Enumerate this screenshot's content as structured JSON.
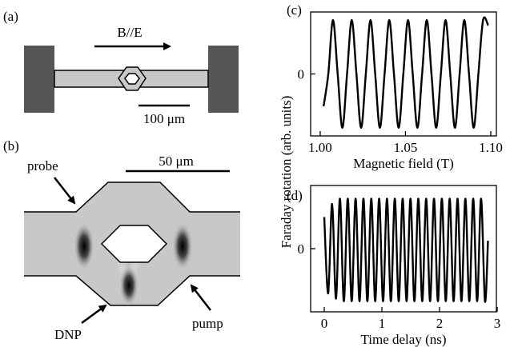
{
  "panel_a": {
    "label": "(a)",
    "arrow_label": "B//E",
    "scale_bar": "100 μm"
  },
  "panel_b": {
    "label": "(b)",
    "scale_bar": "50 μm",
    "probe": "probe",
    "dnp": "DNP",
    "pump": "pump"
  },
  "shared_ylabel": "Faraday rotation (arb. units)",
  "chart_data": [
    {
      "type": "line",
      "panel_label": "(c)",
      "xlabel": "Magnetic field (T)",
      "color": "#000000",
      "x": [
        1.002,
        1.00475,
        1.0075,
        1.01025,
        1.013,
        1.01575,
        1.0185,
        1.02125,
        1.024,
        1.02675,
        1.0295,
        1.03225,
        1.035,
        1.03775,
        1.0405,
        1.04325,
        1.046,
        1.04875,
        1.0515,
        1.05425,
        1.057,
        1.05975,
        1.0625,
        1.06525,
        1.068,
        1.07075,
        1.0735,
        1.07625,
        1.079,
        1.08175,
        1.0845,
        1.08725,
        1.09,
        1.09275,
        1.0955,
        1.0985
      ],
      "values": [
        -0.6,
        0,
        1,
        0,
        -1,
        0,
        1,
        0,
        -1,
        0,
        1,
        0,
        -1,
        0,
        1,
        0,
        -1,
        0,
        1,
        0,
        -1,
        0,
        1,
        0,
        -1,
        0,
        1,
        0,
        -1,
        0,
        1,
        0,
        -1,
        0,
        1,
        0.9
      ],
      "xlim": [
        0.9944,
        1.1033
      ],
      "ylim": [
        -1.15,
        1.15
      ],
      "xticks": [
        {
          "value": 1.0,
          "label": "1.00"
        },
        {
          "value": 1.05,
          "label": "1.05"
        },
        {
          "value": 1.1,
          "label": "1.10"
        }
      ],
      "yticks": [
        0
      ]
    },
    {
      "type": "line",
      "panel_label": "(d)",
      "xlabel": "Time delay (ns)",
      "color": "#000000",
      "x": [
        0,
        0.068,
        0.136,
        0.204,
        0.272,
        0.34,
        0.408,
        0.476,
        0.544,
        0.612,
        0.68,
        0.748,
        0.816,
        0.884,
        0.952,
        1.02,
        1.088,
        1.156,
        1.224,
        1.292,
        1.36,
        1.428,
        1.496,
        1.564,
        1.632,
        1.7,
        1.768,
        1.836,
        1.904,
        1.972,
        2.04,
        2.108,
        2.176,
        2.244,
        2.312,
        2.38,
        2.448,
        2.516,
        2.584,
        2.652,
        2.72,
        2.788,
        2.84
      ],
      "values": [
        0.6,
        -0.85,
        0.85,
        -0.95,
        0.95,
        -1,
        0.95,
        -1,
        0.95,
        -1,
        0.95,
        -1,
        0.95,
        -1,
        0.95,
        -1,
        0.95,
        -1,
        0.95,
        -1,
        0.95,
        -1,
        0.95,
        -1,
        0.95,
        -1,
        0.95,
        -1,
        0.95,
        -1,
        0.95,
        -1,
        0.95,
        -1,
        0.95,
        -1,
        0.95,
        -1,
        0.95,
        -1,
        0.95,
        -1,
        0.15
      ],
      "xlim": [
        -0.236,
        2.986
      ],
      "ylim": [
        -1.2,
        1.2
      ],
      "xticks": [
        0,
        1,
        2,
        3
      ],
      "yticks": [
        0
      ]
    }
  ]
}
